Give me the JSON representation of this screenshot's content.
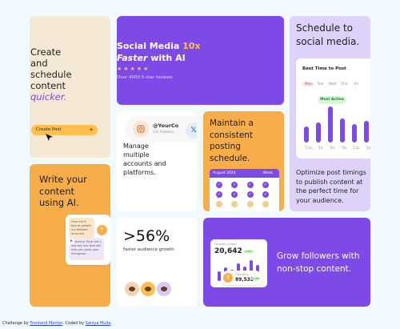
{
  "create": {
    "line1": "Create",
    "line2": "and",
    "line3": "schedule",
    "line4": "content",
    "accent": "quicker.",
    "cta": "Create Post",
    "cta_icon": "plus-icon"
  },
  "write": {
    "line1": "Write your",
    "line2": "content",
    "line3": "using AI.",
    "bubble1": "Give me 6 tips to growth my follower accounts",
    "bubble2": "Certainly! Here are a few key tips that will help you grow your Instagram..."
  },
  "social": {
    "title_pre": "Social Media",
    "title_accent": "10x",
    "title_em": "Faster",
    "title_post": "with AI",
    "stars": "★★★★★",
    "reviews": "Over 4000 5-star reviews"
  },
  "manage": {
    "handle": "@YourCo",
    "followers": "12k followers",
    "line1": "Manage",
    "line2": "multiple",
    "line3": "accounts and",
    "line4": "platforms."
  },
  "maintain": {
    "line1": "Maintain a",
    "line2": "consistent",
    "line3": "posting",
    "line4": "schedule.",
    "cal_month": "August 2024",
    "cal_week": "Week"
  },
  "stat": {
    "value": ">56%",
    "label": "faster audience growth"
  },
  "grow": {
    "line1": "Grow followers with",
    "line2": "non-stop content.",
    "widget_label": "Follower Growth",
    "widget_value": "20,642",
    "widget_pill": "+16%",
    "badge_label": "Followers",
    "badge_value": "89,532",
    "badge_pill": "+18%"
  },
  "schedule": {
    "line1": "Schedule to",
    "line2": "social media.",
    "panel_title": "Best Time to Post",
    "days": [
      "Mon",
      "Tue",
      "Wed",
      "Thu",
      "Fri"
    ],
    "most_active": "Most Active",
    "times": [
      "12a",
      "3a",
      "6a",
      "9a",
      "12p",
      "3p"
    ],
    "body1": "Optimize post timings",
    "body2": "to publish content at",
    "body3": "the perfect time for",
    "body4": "your audience."
  },
  "footer": {
    "prefix": "Challenge by",
    "link1": "Frontend Mentor",
    "mid": ". Coded by",
    "link2": "Saniya Mulla",
    "suffix": "."
  },
  "colors": {
    "purple": "#7d4ae8",
    "orange": "#f7ae4a",
    "cream": "#f5e9d6",
    "lavender": "#ded2fb",
    "yellow": "#ffbf4d"
  }
}
